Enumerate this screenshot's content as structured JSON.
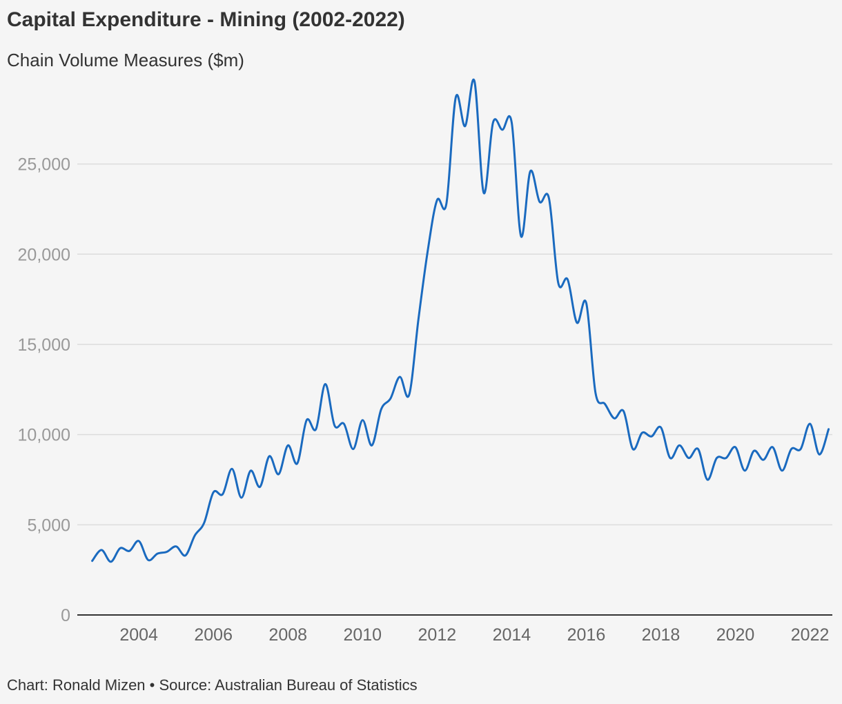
{
  "header": {
    "title": "Capital Expenditure - Mining (2002-2022)",
    "subtitle": "Chain Volume Measures ($m)"
  },
  "footer": {
    "credit": "Chart: Ronald Mizen • Source: Australian Bureau of Statistics"
  },
  "colors": {
    "line": "#1a6abf",
    "grid": "#dcdcdc",
    "axis": "#333333",
    "background": "#f5f5f5"
  },
  "chart_data": {
    "type": "line",
    "title": "Capital Expenditure - Mining (2002-2022)",
    "subtitle": "Chain Volume Measures ($m)",
    "xlabel": "",
    "ylabel": "",
    "xlim": [
      2002.35,
      2022.6
    ],
    "ylim": [
      0,
      29500
    ],
    "y_ticks": [
      0,
      5000,
      10000,
      15000,
      20000,
      25000
    ],
    "y_tick_labels": [
      "0",
      "5,000",
      "10,000",
      "15,000",
      "20,000",
      "25,000"
    ],
    "x_ticks": [
      2004,
      2006,
      2008,
      2010,
      2012,
      2014,
      2016,
      2018,
      2020,
      2022
    ],
    "x_tick_labels": [
      "2004",
      "2006",
      "2008",
      "2010",
      "2012",
      "2014",
      "2016",
      "2018",
      "2020",
      "2022"
    ],
    "grid": "horizontal",
    "legend": "none",
    "series": [
      {
        "x": [
          2002.75,
          2003.0,
          2003.25,
          2003.5,
          2003.75,
          2004.0,
          2004.25,
          2004.5,
          2004.75,
          2005.0,
          2005.25,
          2005.5,
          2005.75,
          2006.0,
          2006.25,
          2006.5,
          2006.75,
          2007.0,
          2007.25,
          2007.5,
          2007.75,
          2008.0,
          2008.25,
          2008.5,
          2008.75,
          2009.0,
          2009.25,
          2009.5,
          2009.75,
          2010.0,
          2010.25,
          2010.5,
          2010.75,
          2011.0,
          2011.25,
          2011.5,
          2011.75,
          2012.0,
          2012.25,
          2012.5,
          2012.75,
          2013.0,
          2013.25,
          2013.5,
          2013.75,
          2014.0,
          2014.25,
          2014.5,
          2014.75,
          2015.0,
          2015.25,
          2015.5,
          2015.75,
          2016.0,
          2016.25,
          2016.5,
          2016.75,
          2017.0,
          2017.25,
          2017.5,
          2017.75,
          2018.0,
          2018.25,
          2018.5,
          2018.75,
          2019.0,
          2019.25,
          2019.5,
          2019.75,
          2020.0,
          2020.25,
          2020.5,
          2020.75,
          2021.0,
          2021.25,
          2021.5,
          2021.75,
          2022.0,
          2022.25,
          2022.5
        ],
        "values": [
          3000,
          3600,
          2950,
          3700,
          3550,
          4100,
          3050,
          3400,
          3500,
          3800,
          3300,
          4400,
          5100,
          6800,
          6700,
          8100,
          6500,
          8000,
          7100,
          8800,
          7800,
          9400,
          8400,
          10800,
          10300,
          12800,
          10500,
          10600,
          9200,
          10800,
          9400,
          11400,
          12000,
          13200,
          12200,
          16400,
          20200,
          23000,
          22800,
          28700,
          27100,
          29600,
          23400,
          27300,
          26900,
          27300,
          21000,
          24600,
          22900,
          23100,
          18400,
          18600,
          16200,
          17300,
          12300,
          11700,
          10900,
          11300,
          9200,
          10100,
          9900,
          10400,
          8700,
          9400,
          8700,
          9200,
          7500,
          8700,
          8700,
          9300,
          8000,
          9100,
          8600,
          9300,
          8000,
          9200,
          9200,
          10600,
          8900,
          10300
        ]
      }
    ]
  }
}
